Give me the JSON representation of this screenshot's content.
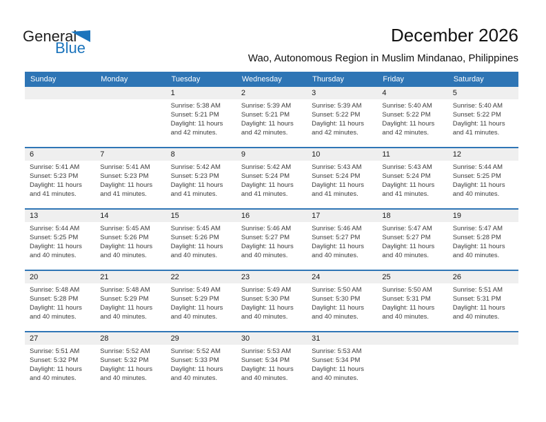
{
  "logo": {
    "text_top": "General",
    "text_bottom": "Blue",
    "triangle_icon_color": "#1b74bc"
  },
  "page": {
    "title": "December 2026",
    "subtitle": "Wao, Autonomous Region in Muslim Mindanao, Philippines"
  },
  "colors": {
    "header_bg": "#2e75b5",
    "row_separator": "#2e75b5",
    "day_number_strip_bg": "#efefef",
    "header_text": "#ffffff",
    "body_text": "#3b3b3b"
  },
  "labels": {
    "sunrise": "Sunrise:",
    "sunset": "Sunset:",
    "daylight": "Daylight:",
    "hours_word": "hours",
    "and_word": "and",
    "minutes_word": "minutes"
  },
  "calendar": {
    "weekday_headers": [
      "Sunday",
      "Monday",
      "Tuesday",
      "Wednesday",
      "Thursday",
      "Friday",
      "Saturday"
    ],
    "weeks": [
      [
        null,
        null,
        {
          "day": 1,
          "sunrise": "5:38 AM",
          "sunset": "5:21 PM",
          "daylight_hours": 11,
          "daylight_minutes": 42
        },
        {
          "day": 2,
          "sunrise": "5:39 AM",
          "sunset": "5:21 PM",
          "daylight_hours": 11,
          "daylight_minutes": 42
        },
        {
          "day": 3,
          "sunrise": "5:39 AM",
          "sunset": "5:22 PM",
          "daylight_hours": 11,
          "daylight_minutes": 42
        },
        {
          "day": 4,
          "sunrise": "5:40 AM",
          "sunset": "5:22 PM",
          "daylight_hours": 11,
          "daylight_minutes": 42
        },
        {
          "day": 5,
          "sunrise": "5:40 AM",
          "sunset": "5:22 PM",
          "daylight_hours": 11,
          "daylight_minutes": 41
        }
      ],
      [
        {
          "day": 6,
          "sunrise": "5:41 AM",
          "sunset": "5:23 PM",
          "daylight_hours": 11,
          "daylight_minutes": 41
        },
        {
          "day": 7,
          "sunrise": "5:41 AM",
          "sunset": "5:23 PM",
          "daylight_hours": 11,
          "daylight_minutes": 41
        },
        {
          "day": 8,
          "sunrise": "5:42 AM",
          "sunset": "5:23 PM",
          "daylight_hours": 11,
          "daylight_minutes": 41
        },
        {
          "day": 9,
          "sunrise": "5:42 AM",
          "sunset": "5:24 PM",
          "daylight_hours": 11,
          "daylight_minutes": 41
        },
        {
          "day": 10,
          "sunrise": "5:43 AM",
          "sunset": "5:24 PM",
          "daylight_hours": 11,
          "daylight_minutes": 41
        },
        {
          "day": 11,
          "sunrise": "5:43 AM",
          "sunset": "5:24 PM",
          "daylight_hours": 11,
          "daylight_minutes": 41
        },
        {
          "day": 12,
          "sunrise": "5:44 AM",
          "sunset": "5:25 PM",
          "daylight_hours": 11,
          "daylight_minutes": 40
        }
      ],
      [
        {
          "day": 13,
          "sunrise": "5:44 AM",
          "sunset": "5:25 PM",
          "daylight_hours": 11,
          "daylight_minutes": 40
        },
        {
          "day": 14,
          "sunrise": "5:45 AM",
          "sunset": "5:26 PM",
          "daylight_hours": 11,
          "daylight_minutes": 40
        },
        {
          "day": 15,
          "sunrise": "5:45 AM",
          "sunset": "5:26 PM",
          "daylight_hours": 11,
          "daylight_minutes": 40
        },
        {
          "day": 16,
          "sunrise": "5:46 AM",
          "sunset": "5:27 PM",
          "daylight_hours": 11,
          "daylight_minutes": 40
        },
        {
          "day": 17,
          "sunrise": "5:46 AM",
          "sunset": "5:27 PM",
          "daylight_hours": 11,
          "daylight_minutes": 40
        },
        {
          "day": 18,
          "sunrise": "5:47 AM",
          "sunset": "5:27 PM",
          "daylight_hours": 11,
          "daylight_minutes": 40
        },
        {
          "day": 19,
          "sunrise": "5:47 AM",
          "sunset": "5:28 PM",
          "daylight_hours": 11,
          "daylight_minutes": 40
        }
      ],
      [
        {
          "day": 20,
          "sunrise": "5:48 AM",
          "sunset": "5:28 PM",
          "daylight_hours": 11,
          "daylight_minutes": 40
        },
        {
          "day": 21,
          "sunrise": "5:48 AM",
          "sunset": "5:29 PM",
          "daylight_hours": 11,
          "daylight_minutes": 40
        },
        {
          "day": 22,
          "sunrise": "5:49 AM",
          "sunset": "5:29 PM",
          "daylight_hours": 11,
          "daylight_minutes": 40
        },
        {
          "day": 23,
          "sunrise": "5:49 AM",
          "sunset": "5:30 PM",
          "daylight_hours": 11,
          "daylight_minutes": 40
        },
        {
          "day": 24,
          "sunrise": "5:50 AM",
          "sunset": "5:30 PM",
          "daylight_hours": 11,
          "daylight_minutes": 40
        },
        {
          "day": 25,
          "sunrise": "5:50 AM",
          "sunset": "5:31 PM",
          "daylight_hours": 11,
          "daylight_minutes": 40
        },
        {
          "day": 26,
          "sunrise": "5:51 AM",
          "sunset": "5:31 PM",
          "daylight_hours": 11,
          "daylight_minutes": 40
        }
      ],
      [
        {
          "day": 27,
          "sunrise": "5:51 AM",
          "sunset": "5:32 PM",
          "daylight_hours": 11,
          "daylight_minutes": 40
        },
        {
          "day": 28,
          "sunrise": "5:52 AM",
          "sunset": "5:32 PM",
          "daylight_hours": 11,
          "daylight_minutes": 40
        },
        {
          "day": 29,
          "sunrise": "5:52 AM",
          "sunset": "5:33 PM",
          "daylight_hours": 11,
          "daylight_minutes": 40
        },
        {
          "day": 30,
          "sunrise": "5:53 AM",
          "sunset": "5:34 PM",
          "daylight_hours": 11,
          "daylight_minutes": 40
        },
        {
          "day": 31,
          "sunrise": "5:53 AM",
          "sunset": "5:34 PM",
          "daylight_hours": 11,
          "daylight_minutes": 40
        },
        null,
        null
      ]
    ]
  }
}
